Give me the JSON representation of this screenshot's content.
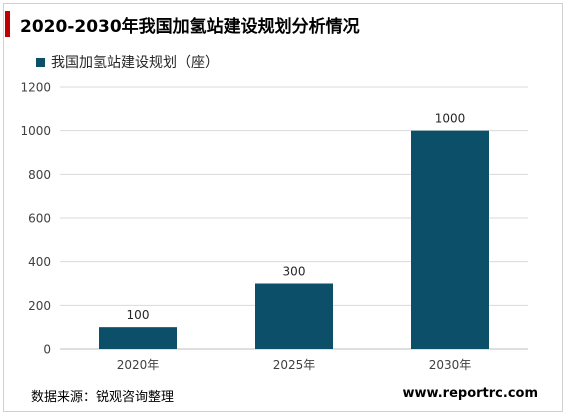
{
  "title": "2020-2030年我国加氢站建设规划分析情况",
  "source": "数据来源：锐观咨询整理",
  "website": "www.reportrc.com",
  "colors": {
    "bar": "#0b5068",
    "accent": "#c00000",
    "grid": "#d9d9d9"
  },
  "chart_data": {
    "type": "bar",
    "categories": [
      "2020年",
      "2025年",
      "2030年"
    ],
    "series": [
      {
        "name": "我国加氢站建设规划（座）",
        "values": [
          100,
          300,
          1000
        ]
      }
    ],
    "ylim": [
      0,
      1200
    ],
    "yticks": [
      0,
      200,
      400,
      600,
      800,
      1000,
      1200
    ],
    "grid": true,
    "legend": "top-left",
    "data_labels": true
  }
}
